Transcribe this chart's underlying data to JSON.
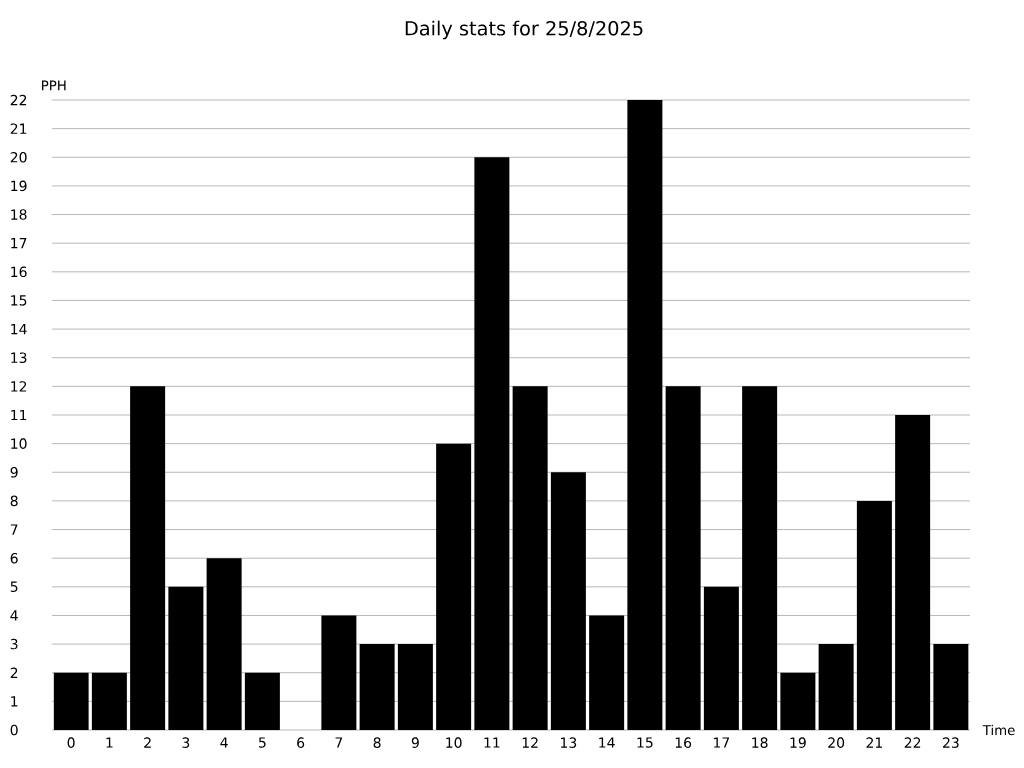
{
  "chart_data": {
    "type": "bar",
    "title": "Daily stats for 25/8/2025",
    "xlabel": "Time",
    "ylabel": "PPH",
    "categories": [
      "0",
      "1",
      "2",
      "3",
      "4",
      "5",
      "6",
      "7",
      "8",
      "9",
      "10",
      "11",
      "12",
      "13",
      "14",
      "15",
      "16",
      "17",
      "18",
      "19",
      "20",
      "21",
      "22",
      "23"
    ],
    "values": [
      2,
      2,
      12,
      5,
      6,
      2,
      0,
      4,
      3,
      3,
      10,
      20,
      12,
      9,
      4,
      22,
      12,
      5,
      12,
      2,
      3,
      8,
      11,
      3
    ],
    "color": "#000000",
    "ylim": [
      0,
      22
    ],
    "yticks": [
      0,
      1,
      2,
      3,
      4,
      5,
      6,
      7,
      8,
      9,
      10,
      11,
      12,
      13,
      14,
      15,
      16,
      17,
      18,
      19,
      20,
      21,
      22
    ],
    "grid": "y"
  }
}
